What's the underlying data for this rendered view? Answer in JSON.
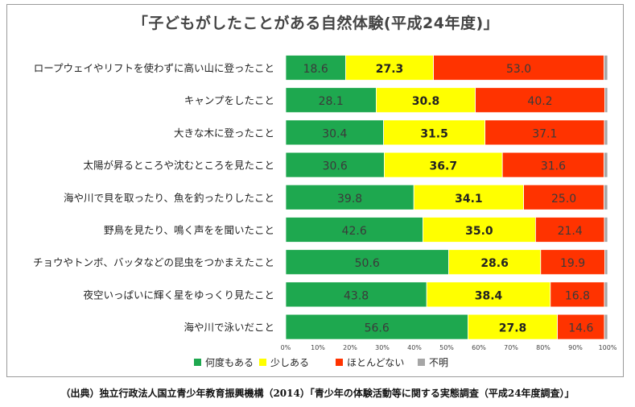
{
  "colors": {
    "often": "#1ea84f",
    "a_little": "#ffff00",
    "rarely": "#ff3300",
    "unknown": "#a6a6a6"
  },
  "source_note": "（出典）独立行政法人国立青少年教育振興機構（2014）「青少年の体験活動等に関する実態調査（平成24年度調査）」",
  "chart_data": {
    "type": "bar",
    "stacked": true,
    "orientation": "horizontal",
    "title": "「子どもがしたことがある自然体験(平成24年度)」",
    "categories": [
      "ロープウェイやリフトを使わずに高い山に登ったこと",
      "キャンプをしたこと",
      "大きな木に登ったこと",
      "太陽が昇るところや沈むところを見たこと",
      "海や川で貝を取ったり、魚を釣ったりしたこと",
      "野鳥を見たり、鳴く声をを聞いたこと",
      "チョウやトンボ、バッタなどの昆虫をつかまえたこと",
      "夜空いっぱいに輝く星をゆっくり見たこと",
      "海や川で泳いだこと"
    ],
    "series": [
      {
        "name": "何度もある",
        "color": "#1ea84f",
        "values": [
          18.6,
          28.1,
          30.4,
          30.6,
          39.8,
          42.6,
          50.6,
          43.8,
          56.6
        ]
      },
      {
        "name": "少しある",
        "color": "#ffff00",
        "values": [
          27.3,
          30.8,
          31.5,
          36.7,
          34.1,
          35.0,
          28.6,
          38.4,
          27.8
        ]
      },
      {
        "name": "ほとんどない",
        "color": "#ff3300",
        "values": [
          53.0,
          40.2,
          37.1,
          31.6,
          25.0,
          21.4,
          19.9,
          16.8,
          14.6
        ]
      },
      {
        "name": "不明",
        "color": "#a6a6a6",
        "values": [
          1.1,
          0.9,
          1.0,
          1.1,
          1.1,
          1.0,
          0.9,
          1.0,
          1.0
        ]
      }
    ],
    "x_ticks": [
      "0%",
      "10%",
      "20%",
      "30%",
      "40%",
      "50%",
      "60%",
      "70%",
      "80%",
      "90%",
      "100%"
    ],
    "xlim": [
      0,
      100
    ],
    "xlabel": "",
    "ylabel": "",
    "grid": false,
    "legend": "bottom"
  }
}
